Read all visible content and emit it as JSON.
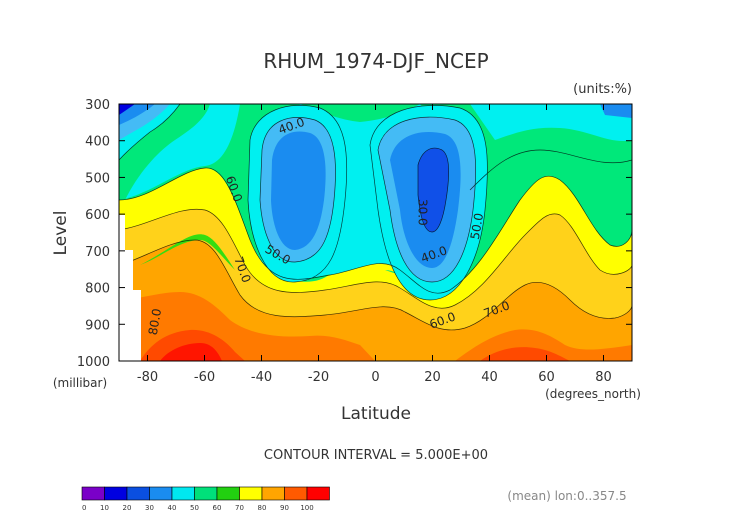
{
  "chart_data": {
    "type": "contour",
    "title": "RHUM_1974-DJF_NCEP",
    "units_label": "(units:%)",
    "xlabel": "Latitude",
    "x_units": "(degrees_north)",
    "ylabel": "Level",
    "y_units": "(millibar)",
    "xlim": [
      -90,
      90
    ],
    "ylim": [
      1000,
      300
    ],
    "x_ticks": [
      "-80",
      "-60",
      "-40",
      "-20",
      "0",
      "20",
      "40",
      "60",
      "80"
    ],
    "x_tick_values": [
      -80,
      -60,
      -40,
      -20,
      0,
      20,
      40,
      60,
      80
    ],
    "y_ticks": [
      "300",
      "400",
      "500",
      "600",
      "700",
      "800",
      "900",
      "1000"
    ],
    "y_tick_values": [
      300,
      400,
      500,
      600,
      700,
      800,
      900,
      1000
    ],
    "contour_interval_text": "CONTOUR INTERVAL = 5.000E+00",
    "footer_note": "(mean) lon:0..357.5",
    "contour_labels": [
      {
        "text": "40.0",
        "lat": -29,
        "level": 370
      },
      {
        "text": "60.0",
        "lat": -51,
        "level": 535
      },
      {
        "text": "50.0",
        "lat": -35,
        "level": 720
      },
      {
        "text": "70.0",
        "lat": -48,
        "level": 755
      },
      {
        "text": "80.0",
        "lat": -76,
        "level": 895
      },
      {
        "text": "30.0",
        "lat": 15,
        "level": 595
      },
      {
        "text": "40.0",
        "lat": 21,
        "level": 720
      },
      {
        "text": "50.0",
        "lat": 37,
        "level": 635
      },
      {
        "text": "60.0",
        "lat": 24,
        "level": 900
      },
      {
        "text": "70.0",
        "lat": 43,
        "level": 870
      }
    ],
    "colorbar": {
      "ticks": [
        "0",
        "10",
        "20",
        "30",
        "40",
        "50",
        "60",
        "70",
        "80",
        "90",
        "100"
      ],
      "colors": [
        "#7a00c8",
        "#0000e0",
        "#0a4fe0",
        "#1a8cf0",
        "#00e8f0",
        "#00e07a",
        "#22d010",
        "#ffff00",
        "#ffa500",
        "#ff5a00",
        "#ff0000"
      ]
    },
    "band_colors": {
      "10": "#0000e0",
      "20": "#1050e8",
      "30": "#1a8cf0",
      "40": "#44bbf5",
      "50": "#00f0f0",
      "60": "#00e87a",
      "65": "#33dd11",
      "70": "#ffff00",
      "75": "#ffd21a",
      "80": "#ffa500",
      "85": "#ff7a00",
      "90": "#ff4a00",
      "95": "#ff1500"
    }
  }
}
